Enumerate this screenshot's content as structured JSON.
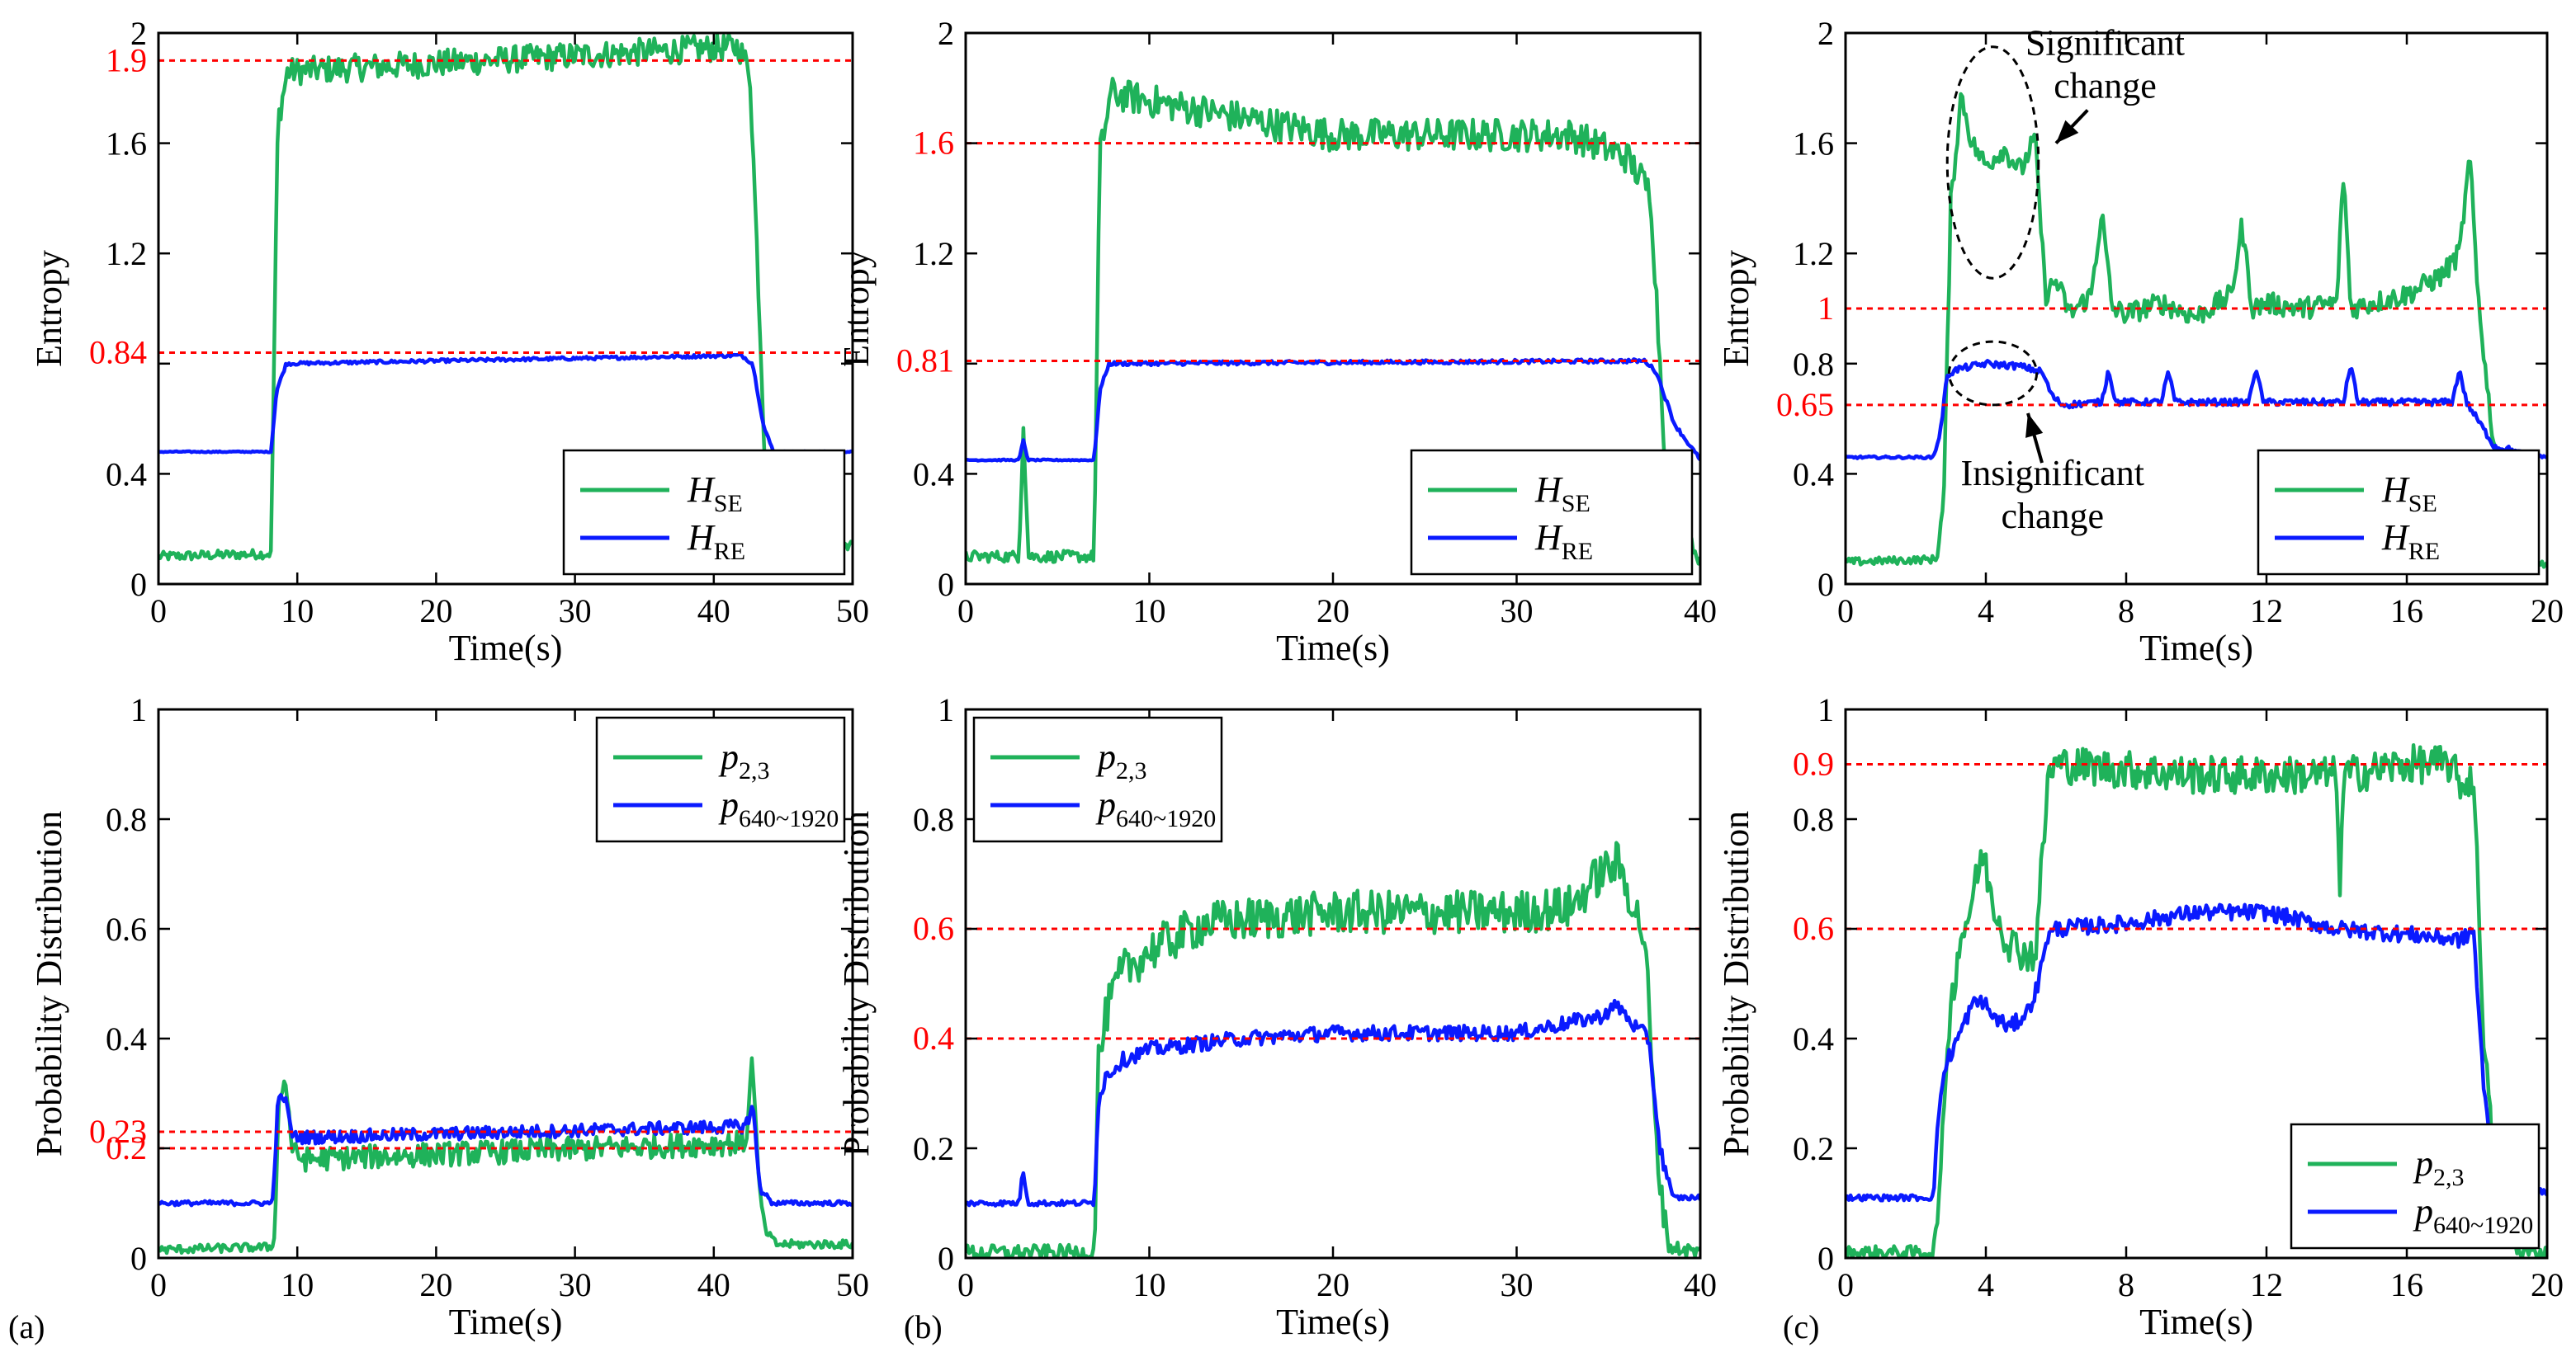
{
  "colors": {
    "green": "#1fb25a",
    "blue": "#0a1aff",
    "ref": "#ff0000",
    "annotation": "#000000"
  },
  "panel_labels": [
    "(a)",
    "(b)",
    "(c)"
  ],
  "chart_data": [
    {
      "id": "a-top",
      "type": "line",
      "xlabel": "Time(s)",
      "ylabel": "Entropy",
      "xlim": [
        0,
        50
      ],
      "ylim": [
        0,
        2
      ],
      "xticks": [
        "0",
        "10",
        "20",
        "30",
        "40",
        "50"
      ],
      "yticks": [
        "0",
        "0.4",
        "",
        "1.2",
        "1.6",
        "2"
      ],
      "ref_lines": [
        {
          "y": 1.9,
          "label": "1.9"
        },
        {
          "y": 0.84,
          "label": "0.84"
        }
      ],
      "legend": {
        "position": "bottom-right",
        "entries": [
          {
            "base": "H",
            "sub": "SE",
            "series": 0
          },
          {
            "base": "H",
            "sub": "RE",
            "series": 1
          }
        ]
      },
      "series": [
        {
          "color_key": "green",
          "x": [
            0,
            8.1,
            8.6,
            9.3,
            41.8,
            42.6,
            43.2,
            43.9,
            50
          ],
          "y": [
            0.1,
            0.11,
            1.68,
            1.86,
            1.95,
            1.86,
            1.1,
            0.17,
            0.14
          ],
          "noise": 0.05
        },
        {
          "color_key": "blue",
          "x": [
            0,
            8.1,
            8.5,
            9.2,
            42,
            42.8,
            43.6,
            44.3,
            50
          ],
          "y": [
            0.48,
            0.48,
            0.7,
            0.8,
            0.83,
            0.8,
            0.57,
            0.48,
            0.48
          ],
          "noise": 0.006
        }
      ]
    },
    {
      "id": "b-top",
      "type": "line",
      "xlabel": "Time(s)",
      "ylabel": "Entropy",
      "xlim": [
        0,
        40
      ],
      "ylim": [
        0,
        2
      ],
      "xticks": [
        "0",
        "10",
        "20",
        "30",
        "40"
      ],
      "yticks": [
        "0",
        "0.4",
        "",
        "1.2",
        "",
        "2"
      ],
      "ref_lines": [
        {
          "y": 1.6,
          "label": "1.6"
        },
        {
          "y": 0.81,
          "label": "0.81"
        }
      ],
      "legend": {
        "position": "bottom-right",
        "entries": [
          {
            "base": "H",
            "sub": "SE",
            "series": 0
          },
          {
            "base": "H",
            "sub": "RE",
            "series": 1
          }
        ]
      },
      "series": [
        {
          "color_key": "green",
          "x": [
            0,
            2.9,
            3.15,
            3.4,
            7,
            7.3,
            7.9,
            20,
            33,
            36,
            37.3,
            38.1,
            39,
            40
          ],
          "y": [
            0.1,
            0.1,
            0.62,
            0.1,
            0.1,
            1.55,
            1.78,
            1.63,
            1.63,
            1.55,
            1.42,
            0.45,
            0.22,
            0.08
          ],
          "noise": 0.06
        },
        {
          "color_key": "blue",
          "x": [
            0,
            2.9,
            3.15,
            3.4,
            7,
            7.3,
            7.8,
            37,
            37.6,
            38.6,
            40
          ],
          "y": [
            0.45,
            0.45,
            0.52,
            0.45,
            0.45,
            0.7,
            0.8,
            0.81,
            0.77,
            0.58,
            0.45
          ],
          "noise": 0.007
        }
      ]
    },
    {
      "id": "c-top",
      "type": "line",
      "xlabel": "Time(s)",
      "ylabel": "Entropy",
      "xlim": [
        0,
        20
      ],
      "ylim": [
        0,
        2
      ],
      "xticks": [
        "0",
        "4",
        "8",
        "12",
        "16",
        "20"
      ],
      "yticks": [
        "0",
        "0.4",
        "0.8",
        "1.2",
        "1.6",
        "2"
      ],
      "ref_lines": [
        {
          "y": 1,
          "label": "1"
        },
        {
          "y": 0.65,
          "label": "0.65"
        }
      ],
      "legend": {
        "position": "bottom-right",
        "entries": [
          {
            "base": "H",
            "sub": "SE",
            "series": 0
          },
          {
            "base": "H",
            "sub": "RE",
            "series": 1
          }
        ]
      },
      "annotations": [
        {
          "text": [
            "Significant",
            "change"
          ],
          "ellipse": {
            "cx": 4.2,
            "cy": 1.53,
            "rx": 1.3,
            "ry": 0.42
          },
          "arrow_from": [
            6.9,
            1.72
          ],
          "arrow_to": [
            6.0,
            1.6
          ],
          "text_at": [
            7.4,
            1.92
          ]
        },
        {
          "text": [
            "Insignificant",
            "change"
          ],
          "ellipse": {
            "cx": 4.2,
            "cy": 0.765,
            "rx": 1.25,
            "ry": 0.115
          },
          "arrow_from": [
            5.6,
            0.44
          ],
          "arrow_to": [
            5.2,
            0.62
          ],
          "text_at": [
            5.9,
            0.36
          ]
        }
      ],
      "series": [
        {
          "color_key": "green",
          "x": [
            0,
            2.6,
            2.8,
            3.0,
            3.3,
            3.6,
            4.0,
            4.5,
            5.0,
            5.4,
            5.7,
            6.0,
            6.4,
            7.0,
            7.3,
            7.6,
            8,
            9,
            10,
            11,
            11.3,
            11.6,
            12,
            13,
            14,
            14.2,
            14.4,
            15,
            16,
            17,
            17.5,
            17.8,
            18,
            18.3,
            18.8,
            19.3,
            20
          ],
          "y": [
            0.08,
            0.09,
            0.3,
            1.38,
            1.78,
            1.6,
            1.52,
            1.58,
            1.5,
            1.62,
            1.05,
            1.1,
            0.98,
            1.05,
            1.35,
            1.0,
            0.98,
            1.02,
            0.97,
            1.05,
            1.3,
            1.0,
            1.02,
            1.0,
            1.02,
            1.5,
            1.0,
            1.02,
            1.05,
            1.12,
            1.2,
            1.55,
            1.1,
            0.7,
            0.2,
            0.08,
            0.07
          ],
          "noise": 0.04
        },
        {
          "color_key": "blue",
          "x": [
            0,
            2.5,
            2.7,
            2.9,
            3.2,
            4.0,
            5.0,
            5.6,
            5.9,
            6.2,
            7.3,
            7.5,
            7.7,
            9.0,
            9.2,
            9.4,
            11.5,
            11.7,
            11.9,
            14.2,
            14.4,
            14.6,
            17.3,
            17.5,
            17.7,
            18.1,
            18.5,
            19.2,
            20
          ],
          "y": [
            0.46,
            0.46,
            0.55,
            0.76,
            0.78,
            0.8,
            0.79,
            0.77,
            0.68,
            0.65,
            0.66,
            0.78,
            0.66,
            0.66,
            0.77,
            0.66,
            0.66,
            0.79,
            0.66,
            0.66,
            0.8,
            0.66,
            0.66,
            0.78,
            0.66,
            0.58,
            0.5,
            0.48,
            0.46
          ],
          "noise": 0.012
        }
      ]
    },
    {
      "id": "a-bottom",
      "type": "line",
      "xlabel": "Time(s)",
      "ylabel": "Probability Distribution",
      "xlim": [
        0,
        50
      ],
      "ylim": [
        0,
        1
      ],
      "xticks": [
        "0",
        "10",
        "20",
        "30",
        "40",
        "50"
      ],
      "yticks": [
        "0",
        "",
        "0.4",
        "0.6",
        "0.8",
        "1"
      ],
      "ref_lines": [
        {
          "y": 0.23,
          "label": "0.23"
        },
        {
          "y": 0.2,
          "label": "0.2"
        }
      ],
      "legend": {
        "position": "top-right",
        "entries": [
          {
            "base": "p",
            "sub": "2,3",
            "series": 0
          },
          {
            "base": "p",
            "sub": "640~1920",
            "series": 1
          }
        ]
      },
      "series": [
        {
          "color_key": "green",
          "x": [
            0,
            8.3,
            8.7,
            9.1,
            9.7,
            10.6,
            42.3,
            42.8,
            43.2,
            43.7,
            44.5,
            50
          ],
          "y": [
            0.015,
            0.02,
            0.29,
            0.33,
            0.19,
            0.18,
            0.21,
            0.37,
            0.14,
            0.05,
            0.025,
            0.025
          ],
          "noise": 0.022
        },
        {
          "color_key": "blue",
          "x": [
            0,
            8.2,
            8.6,
            9.0,
            9.7,
            10.5,
            42.3,
            42.8,
            43.3,
            44.2,
            50
          ],
          "y": [
            0.1,
            0.1,
            0.28,
            0.3,
            0.22,
            0.22,
            0.24,
            0.28,
            0.13,
            0.1,
            0.1
          ],
          "noise": 0.012
        }
      ]
    },
    {
      "id": "b-bottom",
      "type": "line",
      "xlabel": "Time(s)",
      "ylabel": "Probability Distribution",
      "xlim": [
        0,
        40
      ],
      "ylim": [
        0,
        1
      ],
      "xticks": [
        "0",
        "10",
        "20",
        "30",
        "40"
      ],
      "yticks": [
        "0",
        "0.2",
        "",
        "",
        "0.8",
        "1"
      ],
      "ref_lines": [
        {
          "y": 0.6,
          "label": "0.6"
        },
        {
          "y": 0.4,
          "label": "0.4"
        }
      ],
      "legend": {
        "position": "top-left",
        "entries": [
          {
            "base": "p",
            "sub": "2,3",
            "series": 0
          },
          {
            "base": "p",
            "sub": "640~1920",
            "series": 1
          }
        ]
      },
      "series": [
        {
          "color_key": "green",
          "x": [
            0,
            7,
            7.2,
            7.7,
            8.5,
            10,
            13,
            20,
            30,
            33,
            34.5,
            35.5,
            36.3,
            37,
            37.6,
            38.3,
            40
          ],
          "y": [
            0.01,
            0.01,
            0.35,
            0.45,
            0.52,
            0.56,
            0.61,
            0.63,
            0.63,
            0.64,
            0.7,
            0.72,
            0.65,
            0.58,
            0.2,
            0.02,
            0.01
          ],
          "noise": 0.04
        },
        {
          "color_key": "blue",
          "x": [
            0,
            2.9,
            3.15,
            3.4,
            7,
            7.2,
            7.6,
            8.5,
            10,
            15,
            20,
            30,
            34.5,
            35.5,
            36.5,
            37.2,
            37.8,
            38.5,
            40
          ],
          "y": [
            0.1,
            0.1,
            0.16,
            0.1,
            0.1,
            0.28,
            0.33,
            0.36,
            0.38,
            0.4,
            0.41,
            0.41,
            0.44,
            0.46,
            0.42,
            0.4,
            0.2,
            0.11,
            0.11
          ],
          "noise": 0.014
        }
      ]
    },
    {
      "id": "c-bottom",
      "type": "line",
      "xlabel": "Time(s)",
      "ylabel": "Probability Distribution",
      "xlim": [
        0,
        20
      ],
      "ylim": [
        0,
        1
      ],
      "xticks": [
        "0",
        "4",
        "8",
        "12",
        "16",
        "20"
      ],
      "yticks": [
        "0",
        "0.2",
        "0.4",
        "",
        "0.8",
        "1"
      ],
      "ref_lines": [
        {
          "y": 0.9,
          "label": "0.9"
        },
        {
          "y": 0.6,
          "label": "0.6"
        }
      ],
      "legend": {
        "position": "bottom-right",
        "entries": [
          {
            "base": "p",
            "sub": "2,3",
            "series": 0
          },
          {
            "base": "p",
            "sub": "640~1920",
            "series": 1
          }
        ]
      },
      "series": [
        {
          "color_key": "green",
          "x": [
            0,
            2.5,
            2.7,
            2.9,
            3.2,
            3.6,
            3.9,
            4.2,
            4.6,
            5.0,
            5.4,
            5.6,
            5.8,
            6.1,
            10,
            14,
            14.1,
            14.2,
            16,
            17.2,
            17.6,
            17.9,
            18.2,
            18.6,
            19.2,
            20
          ],
          "y": [
            0.01,
            0.01,
            0.12,
            0.4,
            0.56,
            0.65,
            0.74,
            0.65,
            0.58,
            0.56,
            0.55,
            0.72,
            0.89,
            0.9,
            0.88,
            0.88,
            0.66,
            0.88,
            0.9,
            0.9,
            0.86,
            0.88,
            0.4,
            0.06,
            0.01,
            0.01
          ],
          "noise": 0.035
        },
        {
          "color_key": "blue",
          "x": [
            0,
            2.5,
            2.7,
            2.9,
            3.2,
            3.6,
            3.9,
            4.2,
            4.7,
            5.2,
            5.5,
            5.7,
            6.0,
            8,
            10,
            12,
            14,
            16,
            17.6,
            17.9,
            18.2,
            18.6,
            20
          ],
          "y": [
            0.11,
            0.11,
            0.3,
            0.36,
            0.4,
            0.46,
            0.47,
            0.44,
            0.42,
            0.45,
            0.5,
            0.58,
            0.6,
            0.61,
            0.63,
            0.63,
            0.6,
            0.59,
            0.58,
            0.6,
            0.3,
            0.13,
            0.12
          ],
          "noise": 0.015
        }
      ]
    }
  ]
}
